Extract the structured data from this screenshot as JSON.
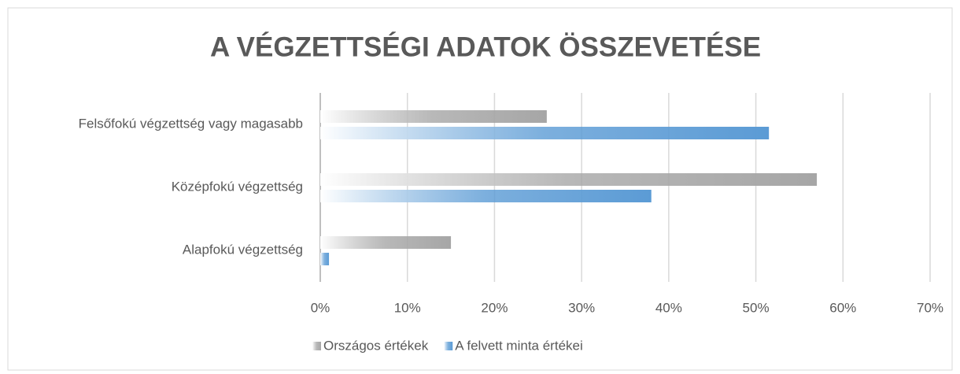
{
  "chart_data": {
    "type": "hbar",
    "title": "A VÉGZETTSÉGI ADATOK ÖSSZEVETÉSE",
    "categories": [
      "Felsőfokú végzettség vagy magasabb",
      "Középfokú végzettség",
      "Alapfokú végzettség"
    ],
    "series": [
      {
        "name": "Országos értékek",
        "color": "#a6a6a6",
        "values": [
          26,
          57,
          15
        ]
      },
      {
        "name": "A felvett minta értékei",
        "color": "#5b9bd5",
        "values": [
          51.5,
          38,
          1
        ]
      }
    ],
    "xlim": [
      0,
      70
    ],
    "xticks": [
      {
        "value": 0,
        "label": "0%"
      },
      {
        "value": 10,
        "label": "10%"
      },
      {
        "value": 20,
        "label": "20%"
      },
      {
        "value": 30,
        "label": "30%"
      },
      {
        "value": 40,
        "label": "40%"
      },
      {
        "value": 50,
        "label": "50%"
      },
      {
        "value": 60,
        "label": "60%"
      },
      {
        "value": 70,
        "label": "70%"
      }
    ],
    "grid": true,
    "legend": "bottom"
  }
}
